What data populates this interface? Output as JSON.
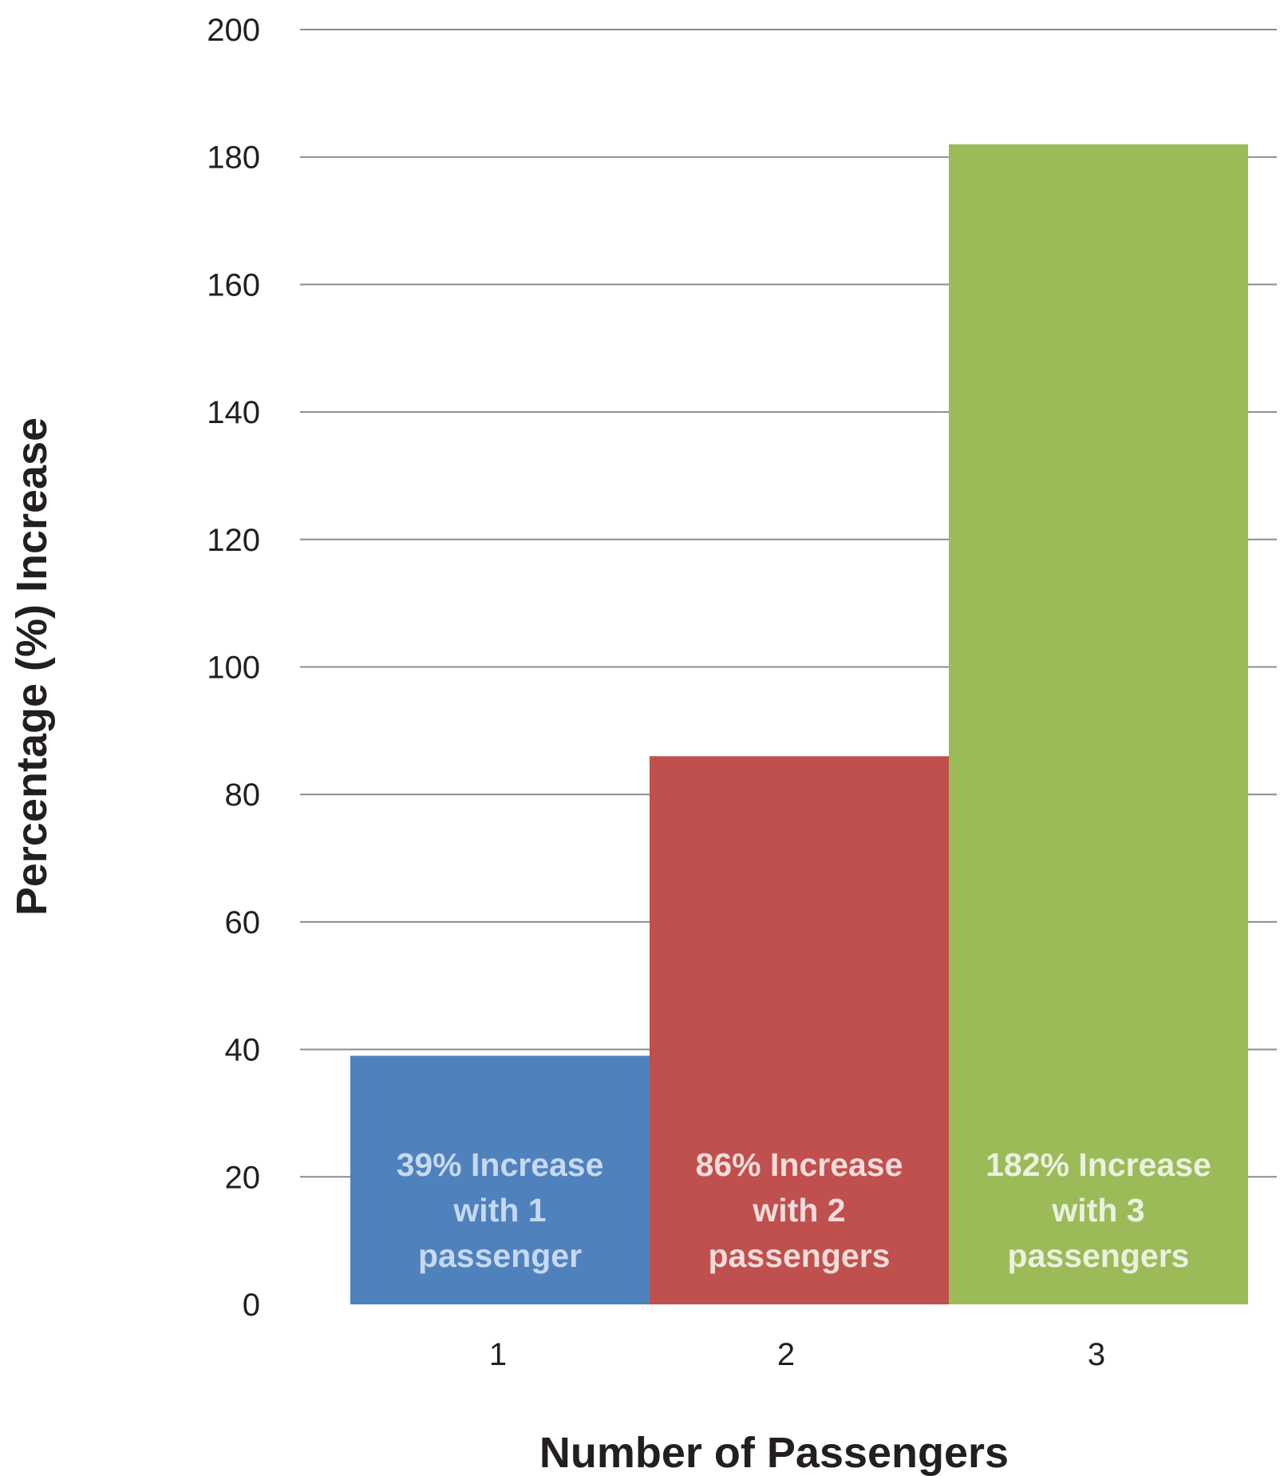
{
  "chart_data": {
    "type": "bar",
    "title": "",
    "xlabel": "Number of Passengers",
    "ylabel": "Percentage (%)  Increase",
    "categories": [
      "1",
      "2",
      "3"
    ],
    "values": [
      39,
      86,
      182
    ],
    "ylim": [
      0,
      200
    ],
    "yticks": [
      "0",
      "20",
      "40",
      "60",
      "80",
      "100",
      "120",
      "140",
      "160",
      "180",
      "200"
    ],
    "grid": true,
    "bar_colors": [
      "#4f81bd",
      "#c0504d",
      "#9bbb59"
    ],
    "label_colors": [
      "#c6d9f1",
      "#f2dcdb",
      "#ebf1de"
    ],
    "bar_labels": [
      [
        "39% Increase",
        "with 1",
        "passenger"
      ],
      [
        "86% Increase",
        "with 2",
        "passengers"
      ],
      [
        "182% Increase",
        "with 3",
        "passengers"
      ]
    ]
  }
}
